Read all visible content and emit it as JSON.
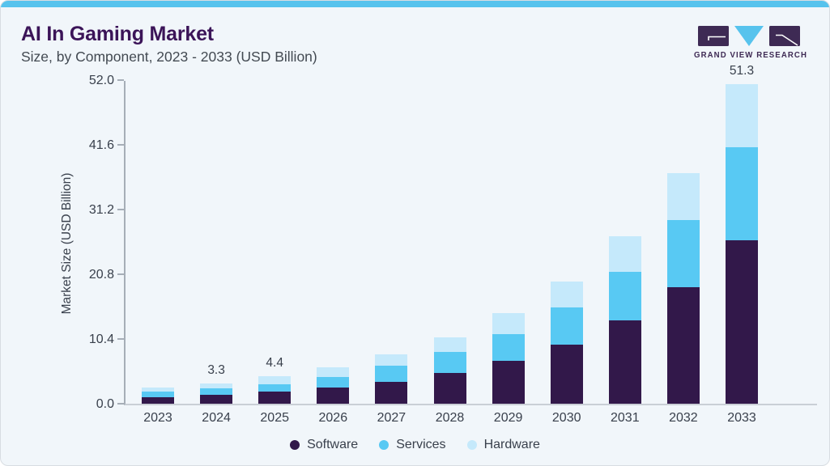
{
  "header": {
    "title": "AI In Gaming Market",
    "subtitle": "Size, by Component, 2023 - 2033 (USD Billion)",
    "logo_text": "GRAND VIEW RESEARCH"
  },
  "colors": {
    "accent_bar": "#57c3ed",
    "software": "#32184a",
    "services": "#58c9f3",
    "hardware": "#c5e9fb",
    "title": "#3b1458",
    "text": "#39404c",
    "axis": "#a6aeb7",
    "card_background": "#f1f6fa",
    "logo_purple": "#3e2a54"
  },
  "chart_data": {
    "type": "bar",
    "stacked": true,
    "title": "AI In Gaming Market",
    "subtitle": "Size, by Component, 2023 - 2033 (USD Billion)",
    "xlabel": "",
    "ylabel": "Market Size (USD Billion)",
    "ylim": [
      0,
      52.0
    ],
    "yticks": [
      0.0,
      10.4,
      20.8,
      31.2,
      41.6,
      52.0
    ],
    "grid": false,
    "legend_position": "bottom",
    "categories": [
      "2023",
      "2024",
      "2025",
      "2026",
      "2027",
      "2028",
      "2029",
      "2030",
      "2031",
      "2032",
      "2033"
    ],
    "series": [
      {
        "name": "Software",
        "color": "#32184a",
        "values": [
          1.1,
          1.4,
          2.0,
          2.6,
          3.5,
          5.0,
          6.9,
          9.5,
          13.4,
          18.7,
          26.3
        ]
      },
      {
        "name": "Services",
        "color": "#58c9f3",
        "values": [
          0.8,
          1.1,
          1.1,
          1.7,
          2.6,
          3.3,
          4.3,
          6.0,
          7.8,
          10.8,
          14.9
        ]
      },
      {
        "name": "Hardware",
        "color": "#c5e9fb",
        "values": [
          0.7,
          0.8,
          1.3,
          1.5,
          1.8,
          2.3,
          3.3,
          4.1,
          5.7,
          7.5,
          10.1
        ]
      }
    ],
    "totals": [
      2.6,
      3.3,
      4.4,
      5.8,
      7.9,
      10.6,
      14.5,
      19.6,
      26.9,
      37.0,
      51.3
    ],
    "bar_value_labels": [
      "",
      "3.3",
      "4.4",
      "",
      "",
      "",
      "",
      "",
      "",
      "",
      "51.3"
    ]
  },
  "legend": {
    "items": [
      {
        "label": "Software",
        "color": "#32184a"
      },
      {
        "label": "Services",
        "color": "#58c9f3"
      },
      {
        "label": "Hardware",
        "color": "#c5e9fb"
      }
    ]
  }
}
